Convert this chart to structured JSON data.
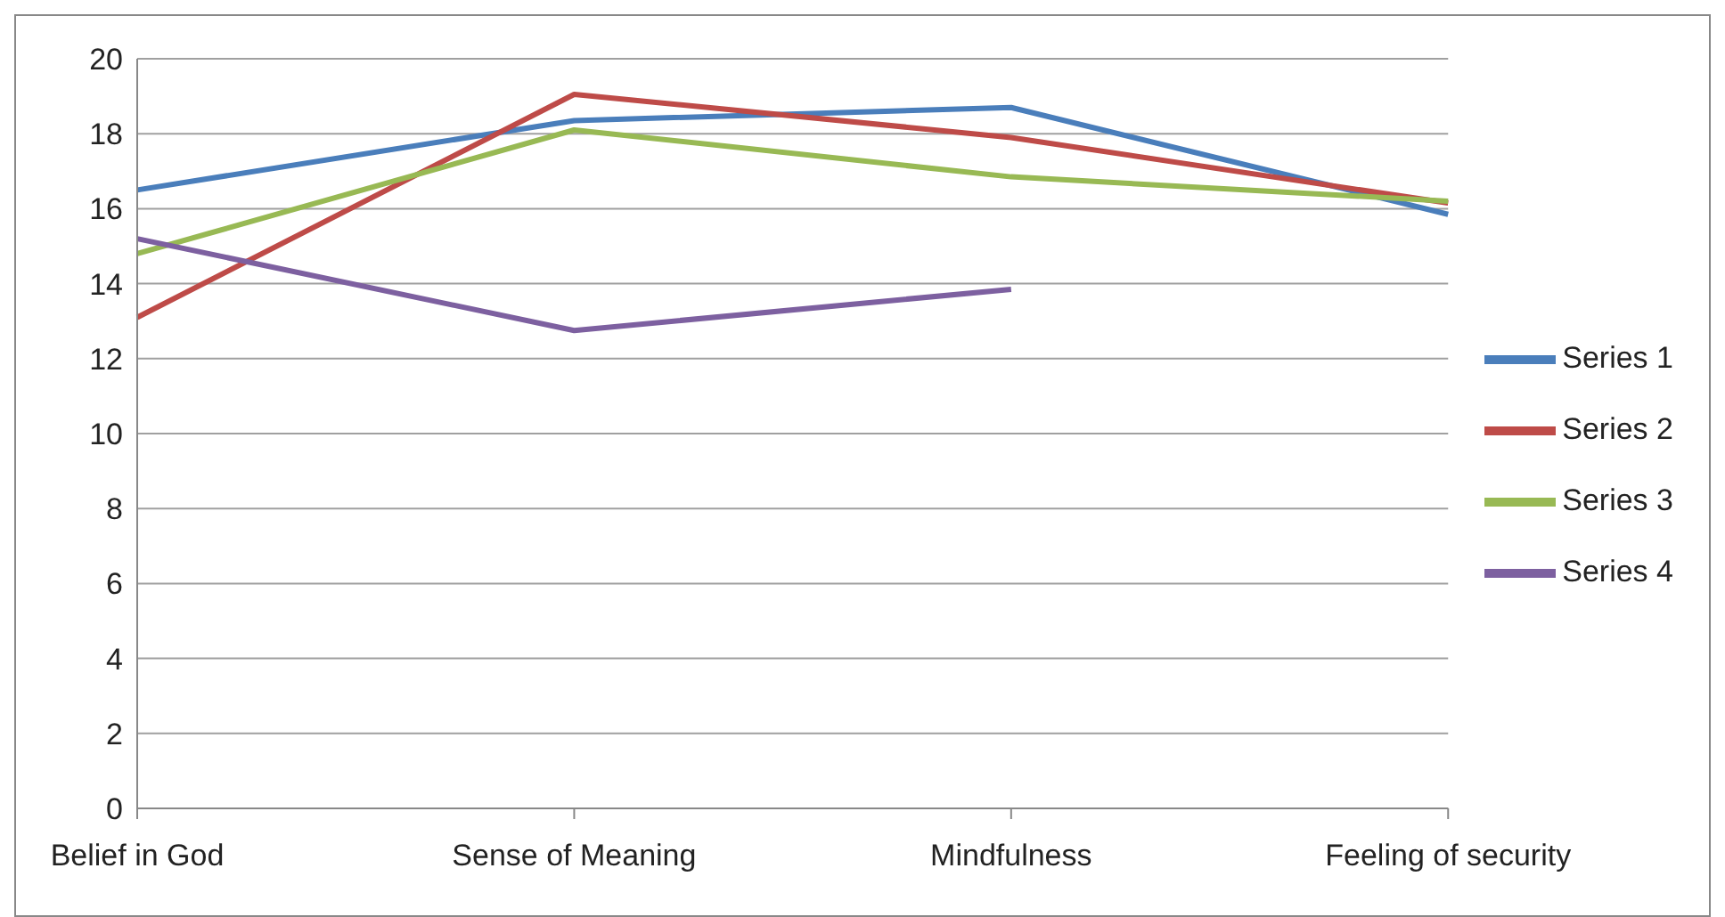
{
  "chart_data": {
    "type": "line",
    "categories": [
      "Belief in God",
      "Sense of Meaning",
      "Mindfulness",
      "Feeling of security"
    ],
    "series": [
      {
        "name": "Series 1",
        "color": "#4a7ebb",
        "values": [
          16.5,
          18.35,
          18.7,
          15.85
        ]
      },
      {
        "name": "Series 2",
        "color": "#be4b48",
        "values": [
          13.1,
          19.05,
          17.9,
          16.15
        ]
      },
      {
        "name": "Series 3",
        "color": "#98b954",
        "values": [
          14.8,
          18.1,
          16.85,
          16.2
        ]
      },
      {
        "name": "Series 4",
        "color": "#7d60a0",
        "values": [
          15.2,
          12.75,
          13.85,
          null
        ]
      }
    ],
    "ylim": [
      0,
      20
    ],
    "yticks": [
      0,
      2,
      4,
      6,
      8,
      10,
      12,
      14,
      16,
      18,
      20
    ],
    "grid": "y",
    "legend": "right",
    "marker": "none",
    "line_style": "solid"
  }
}
